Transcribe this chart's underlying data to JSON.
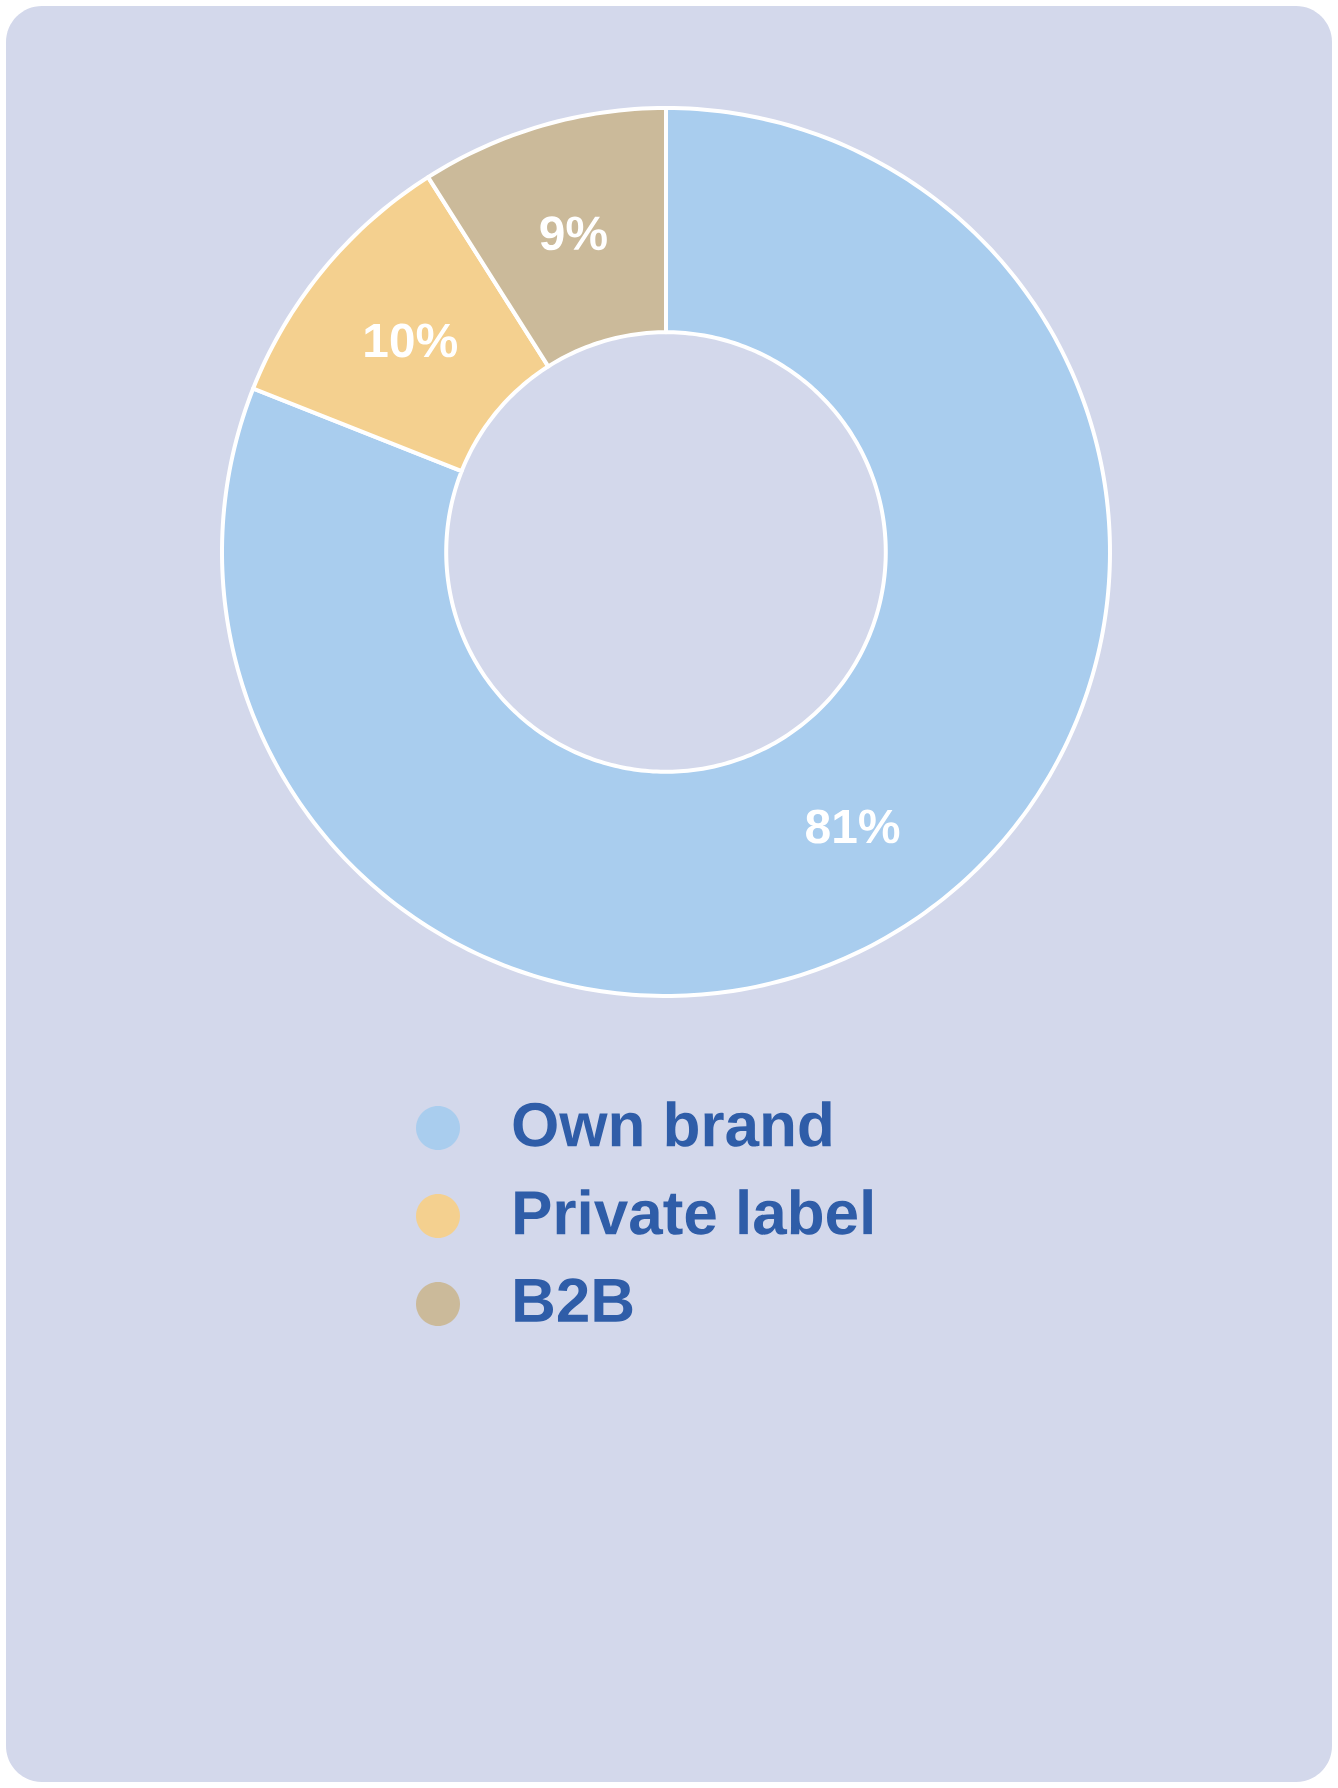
{
  "chart_data": {
    "type": "donut",
    "categories": [
      "Own brand",
      "Private label",
      "B2B"
    ],
    "values": [
      81,
      10,
      9
    ],
    "value_labels": [
      "81%",
      "10%",
      "9%"
    ],
    "colors": [
      "#a9cdee",
      "#f4d08f",
      "#cbba9a"
    ],
    "legend": "bottom"
  }
}
